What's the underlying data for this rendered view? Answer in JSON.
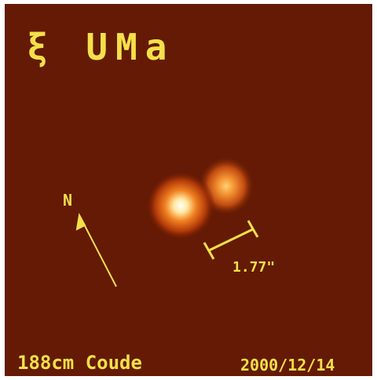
{
  "title": "ξ UMa",
  "compass": {
    "label": "N"
  },
  "scale": {
    "label": "1.77\""
  },
  "footer": {
    "instrument": "188cm Coude",
    "date": "2000/12/14"
  }
}
